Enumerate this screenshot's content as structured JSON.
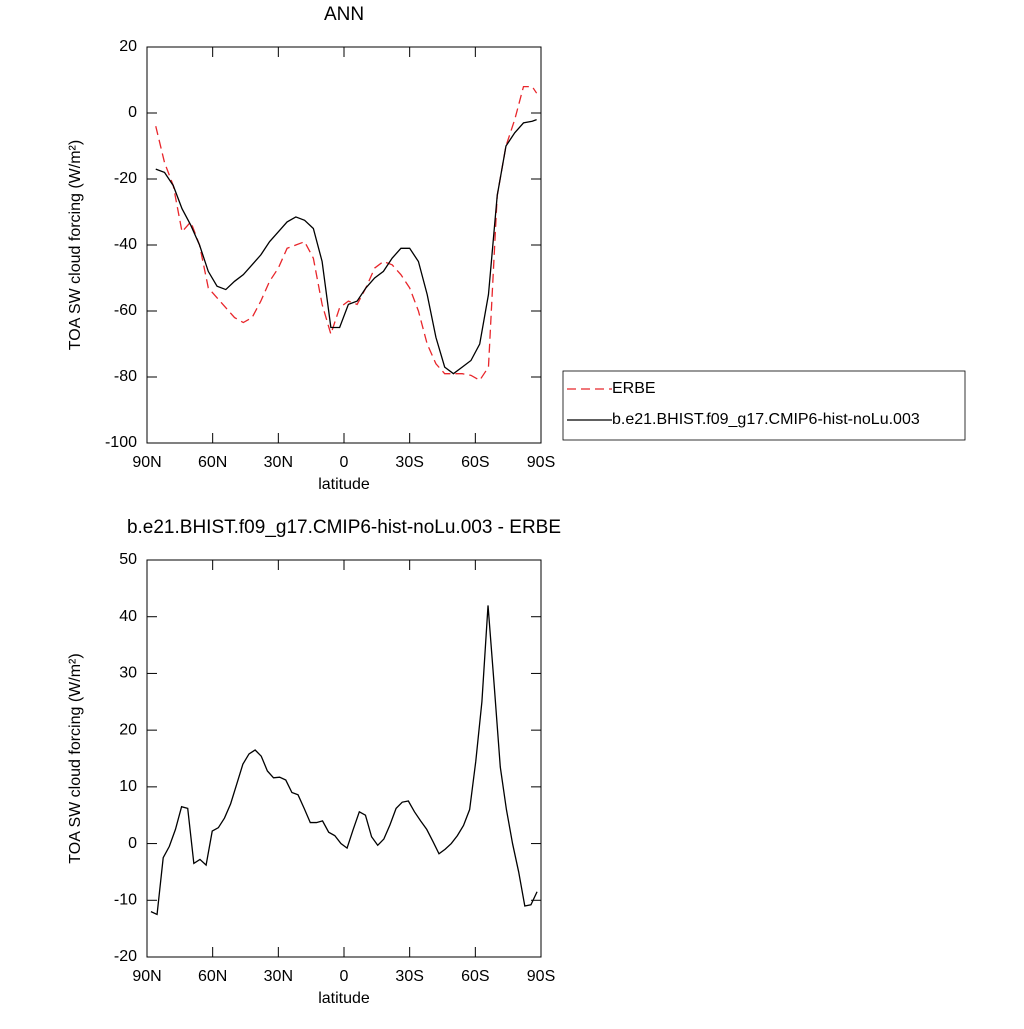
{
  "chart_data": [
    {
      "type": "line",
      "title": "ANN",
      "xlabel": "latitude",
      "ylabel": "TOA SW cloud forcing (W/m²)",
      "xlim": [
        90,
        -90
      ],
      "xticks": [
        {
          "value": 90,
          "label": "90N"
        },
        {
          "value": 60,
          "label": "60N"
        },
        {
          "value": 30,
          "label": "30N"
        },
        0,
        {
          "value": -30,
          "label": "30S"
        },
        {
          "value": -60,
          "label": "60S"
        },
        {
          "value": -90,
          "label": "90S"
        }
      ],
      "ylim": [
        -100,
        20
      ],
      "yticks": [
        -100,
        -80,
        -60,
        -40,
        -20,
        0,
        20
      ],
      "x": [
        86,
        82,
        78,
        74,
        70,
        66,
        62,
        58,
        54,
        50,
        46,
        42,
        38,
        34,
        30,
        26,
        22,
        18,
        14,
        10,
        6,
        2,
        -2,
        -6,
        -10,
        -14,
        -18,
        -22,
        -26,
        -30,
        -34,
        -38,
        -42,
        -46,
        -50,
        -54,
        -58,
        -62,
        -66,
        -70,
        -74,
        -78,
        -82,
        -86,
        -88
      ],
      "series": [
        {
          "name": "ERBE",
          "color": "#e8262b",
          "line_style": "dashed",
          "values": [
            -4,
            -15,
            -22,
            -36,
            -33,
            -40,
            -53,
            -56,
            -59,
            -62,
            -63.5,
            -62,
            -57,
            -51,
            -47,
            -41,
            -40,
            -39,
            -44,
            -58,
            -67,
            -59,
            -57,
            -58,
            -53,
            -47,
            -45,
            -46,
            -49,
            -53,
            -60,
            -70,
            -76,
            -79,
            -79,
            -79,
            -79.5,
            -81,
            -77,
            -25,
            -10,
            -2,
            8,
            8,
            6
          ]
        },
        {
          "name": "b.e21.BHIST.f09_g17.CMIP6-hist-noLu.003",
          "color": "#000000",
          "line_style": "solid",
          "values": [
            -17,
            -18,
            -22,
            -29,
            -34,
            -40,
            -48,
            -52.5,
            -53.5,
            -51,
            -49,
            -46,
            -43,
            -39,
            -36,
            -33,
            -31.5,
            -32.5,
            -35,
            -45,
            -65,
            -65,
            -58,
            -57,
            -53,
            -50,
            -48,
            -44,
            -41,
            -41,
            -45,
            -55,
            -68,
            -77,
            -79,
            -77,
            -75,
            -70,
            -55,
            -25,
            -10,
            -6,
            -3,
            -2.5,
            -2
          ]
        }
      ]
    },
    {
      "type": "line",
      "title": "b.e21.BHIST.f09_g17.CMIP6-hist-noLu.003 - ERBE",
      "xlabel": "latitude",
      "ylabel": "TOA SW cloud forcing (W/m²)",
      "xlim": [
        90,
        -90
      ],
      "xticks": [
        {
          "value": 90,
          "label": "90N"
        },
        {
          "value": 60,
          "label": "60N"
        },
        {
          "value": 30,
          "label": "30N"
        },
        0,
        {
          "value": -30,
          "label": "30S"
        },
        {
          "value": -60,
          "label": "60S"
        },
        {
          "value": -90,
          "label": "90S"
        }
      ],
      "ylim": [
        -20,
        50
      ],
      "yticks": [
        -20,
        -10,
        0,
        10,
        20,
        30,
        40,
        50
      ],
      "x": [
        88.2,
        85.4,
        82.6,
        79.8,
        77.0,
        74.2,
        71.4,
        68.6,
        65.8,
        63.0,
        60.2,
        57.4,
        54.6,
        51.8,
        49.0,
        46.2,
        43.4,
        40.6,
        37.8,
        35.0,
        32.2,
        29.4,
        26.6,
        23.8,
        21.0,
        18.2,
        15.4,
        12.6,
        9.8,
        7.0,
        4.2,
        1.4,
        -1.4,
        -4.2,
        -7.0,
        -9.8,
        -12.6,
        -15.4,
        -18.2,
        -21.0,
        -23.8,
        -26.6,
        -29.4,
        -32.2,
        -35.0,
        -37.8,
        -40.6,
        -43.4,
        -46.2,
        -49.0,
        -51.8,
        -54.6,
        -57.4,
        -60.2,
        -63.0,
        -65.8,
        -68.6,
        -71.4,
        -74.2,
        -77.0,
        -79.8,
        -82.6,
        -85.4,
        -88.2
      ],
      "color": "#000000",
      "values": [
        -12,
        -12.5,
        -2.5,
        -0.5,
        2.5,
        6.5,
        6.2,
        -3.5,
        -2.8,
        -3.8,
        2.2,
        2.8,
        4.5,
        7,
        10.5,
        14,
        15.8,
        16.5,
        15.4,
        12.8,
        11.6,
        11.7,
        11.2,
        9,
        8.6,
        6.2,
        3.7,
        3.7,
        4,
        2,
        1.4,
        0,
        -0.8,
        2.5,
        5.6,
        5,
        1.2,
        -0.3,
        0.8,
        3.3,
        6.2,
        7.3,
        7.5,
        5.6,
        4,
        2.5,
        0.4,
        -1.8,
        -1,
        0,
        1.4,
        3.2,
        6,
        14.5,
        25,
        42,
        28,
        13.5,
        6,
        0,
        -5,
        -11,
        -10.8,
        -8.5
      ]
    }
  ]
}
